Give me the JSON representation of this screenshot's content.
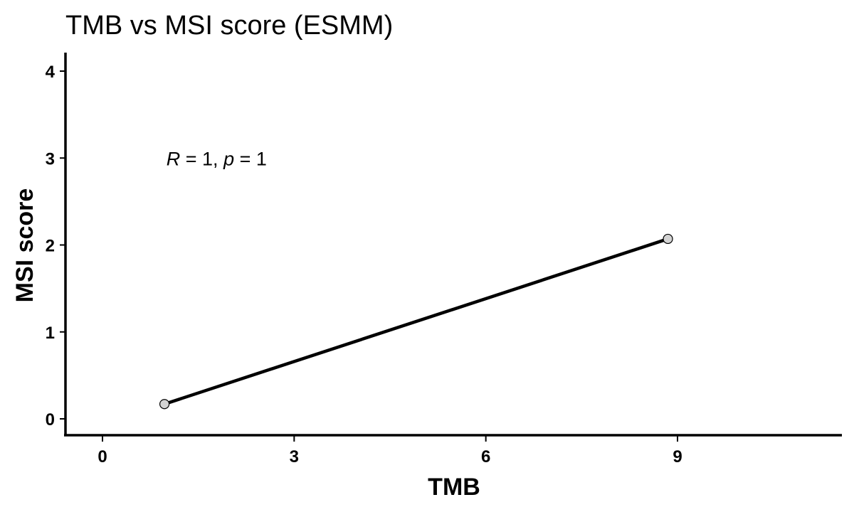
{
  "chart_data": {
    "type": "scatter",
    "title": "TMB vs MSI score (ESMM)",
    "xlabel": "TMB",
    "ylabel": "MSI score",
    "xlim": [
      -0.6,
      11.3
    ],
    "ylim": [
      -0.2,
      4.2
    ],
    "x_ticks": [
      0,
      3,
      6,
      9
    ],
    "y_ticks": [
      0,
      1,
      2,
      3,
      4
    ],
    "points": [
      {
        "x": 0.97,
        "y": 0.17
      },
      {
        "x": 8.85,
        "y": 2.07
      }
    ],
    "regression_line": {
      "x_start": 0.97,
      "y_start": 0.17,
      "x_end": 8.85,
      "y_end": 2.07
    },
    "annotation": {
      "r_symbol": "R",
      "r_value": " = 1, ",
      "p_symbol": "p",
      "p_value": " = 1",
      "x": 1.0,
      "y": 3.0
    },
    "grid": false,
    "colors": {
      "line": "#000000",
      "point_fill": "#d3d3d3",
      "point_stroke": "#000000"
    }
  }
}
